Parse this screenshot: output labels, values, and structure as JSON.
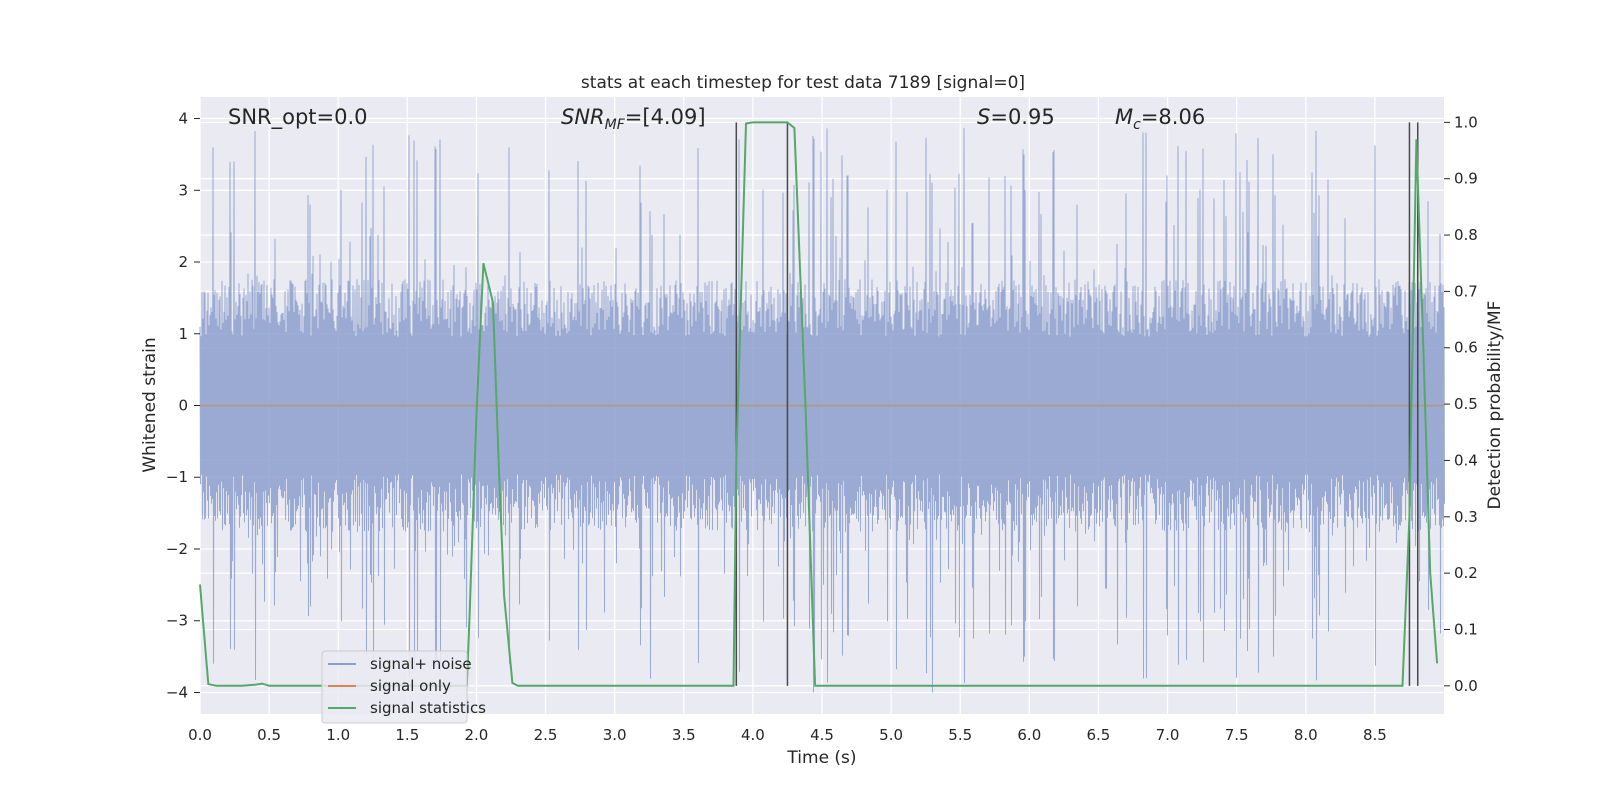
{
  "chart_data": {
    "type": "line",
    "title": "stats at each timestep for test data 7189 [signal=0]",
    "xlabel": "Time (s)",
    "ylabel": "Whitened strain",
    "ylabel_right": "Detection probability/MF",
    "xlim": [
      0,
      9
    ],
    "ylim": [
      -4.3,
      4.3
    ],
    "ylim_right": [
      -0.05,
      1.045
    ],
    "x_ticks": [
      0.0,
      0.5,
      1.0,
      1.5,
      2.0,
      2.5,
      3.0,
      3.5,
      4.0,
      4.5,
      5.0,
      5.5,
      6.0,
      6.5,
      7.0,
      7.5,
      8.0,
      8.5
    ],
    "x_tick_labels": [
      "0.0",
      "0.5",
      "1.0",
      "1.5",
      "2.0",
      "2.5",
      "3.0",
      "3.5",
      "4.0",
      "4.5",
      "5.0",
      "5.5",
      "6.0",
      "6.5",
      "7.0",
      "7.5",
      "8.0",
      "8.5"
    ],
    "y_ticks": [
      -4,
      -3,
      -2,
      -1,
      0,
      1,
      2,
      3,
      4
    ],
    "y_tick_labels": [
      "−4",
      "−3",
      "−2",
      "−1",
      "0",
      "1",
      "2",
      "3",
      "4"
    ],
    "y_right_ticks": [
      0.0,
      0.1,
      0.2,
      0.3,
      0.4,
      0.5,
      0.6,
      0.7,
      0.8,
      0.9,
      1.0
    ],
    "y_right_tick_labels": [
      "0.0",
      "0.1",
      "0.2",
      "0.3",
      "0.4",
      "0.5",
      "0.6",
      "0.7",
      "0.8",
      "0.9",
      "1.0"
    ],
    "grid": true,
    "legend_position": "lower-left",
    "annotations": {
      "snr_opt": "SNR_opt=0.0",
      "snr_mf_sym": "SNR",
      "snr_mf_sub": "MF",
      "snr_mf_val": "=[4.09]",
      "s_sym": "S",
      "s_val": "=0.95",
      "mc_sym": "M",
      "mc_sub": "c",
      "mc_val": "=8.06"
    },
    "series": [
      {
        "name": "signal+ noise",
        "color": "#8c9fcc",
        "kind": "noise",
        "envelope": {
          "typical_abs": 1.6,
          "max_abs": 3.9,
          "min": -4.0
        }
      },
      {
        "name": "signal only",
        "color": "#dd8452",
        "kind": "flat",
        "value": 0.0
      },
      {
        "name": "signal statistics",
        "color": "#55a868",
        "axis": "right",
        "x": [
          0.0,
          0.06,
          0.12,
          0.2,
          0.3,
          0.4,
          0.45,
          0.5,
          0.6,
          0.8,
          1.0,
          1.5,
          1.93,
          1.95,
          2.0,
          2.05,
          2.08,
          2.12,
          2.16,
          2.2,
          2.26,
          2.3,
          2.5,
          3.0,
          3.5,
          3.86,
          3.88,
          3.95,
          4.0,
          4.25,
          4.3,
          4.38,
          4.45,
          5.0,
          6.0,
          7.0,
          8.0,
          8.5,
          8.7,
          8.75,
          8.8,
          8.85,
          8.9,
          8.95
        ],
        "y": [
          0.18,
          0.003,
          0.0,
          0.0,
          0.0,
          0.002,
          0.004,
          0.0,
          0.0,
          0.0,
          0.0,
          0.0,
          0.0,
          0.12,
          0.48,
          0.75,
          0.72,
          0.68,
          0.4,
          0.16,
          0.005,
          0.0,
          0.0,
          0.0,
          0.0,
          0.0,
          0.4,
          0.998,
          1.0,
          1.0,
          0.99,
          0.5,
          0.0,
          0.0,
          0.0,
          0.0,
          0.0,
          0.0,
          0.0,
          0.3,
          0.97,
          0.6,
          0.2,
          0.04
        ]
      }
    ],
    "vlines": [
      3.88,
      4.25,
      8.75,
      8.81
    ],
    "vline_color": "#4a4a4a"
  }
}
